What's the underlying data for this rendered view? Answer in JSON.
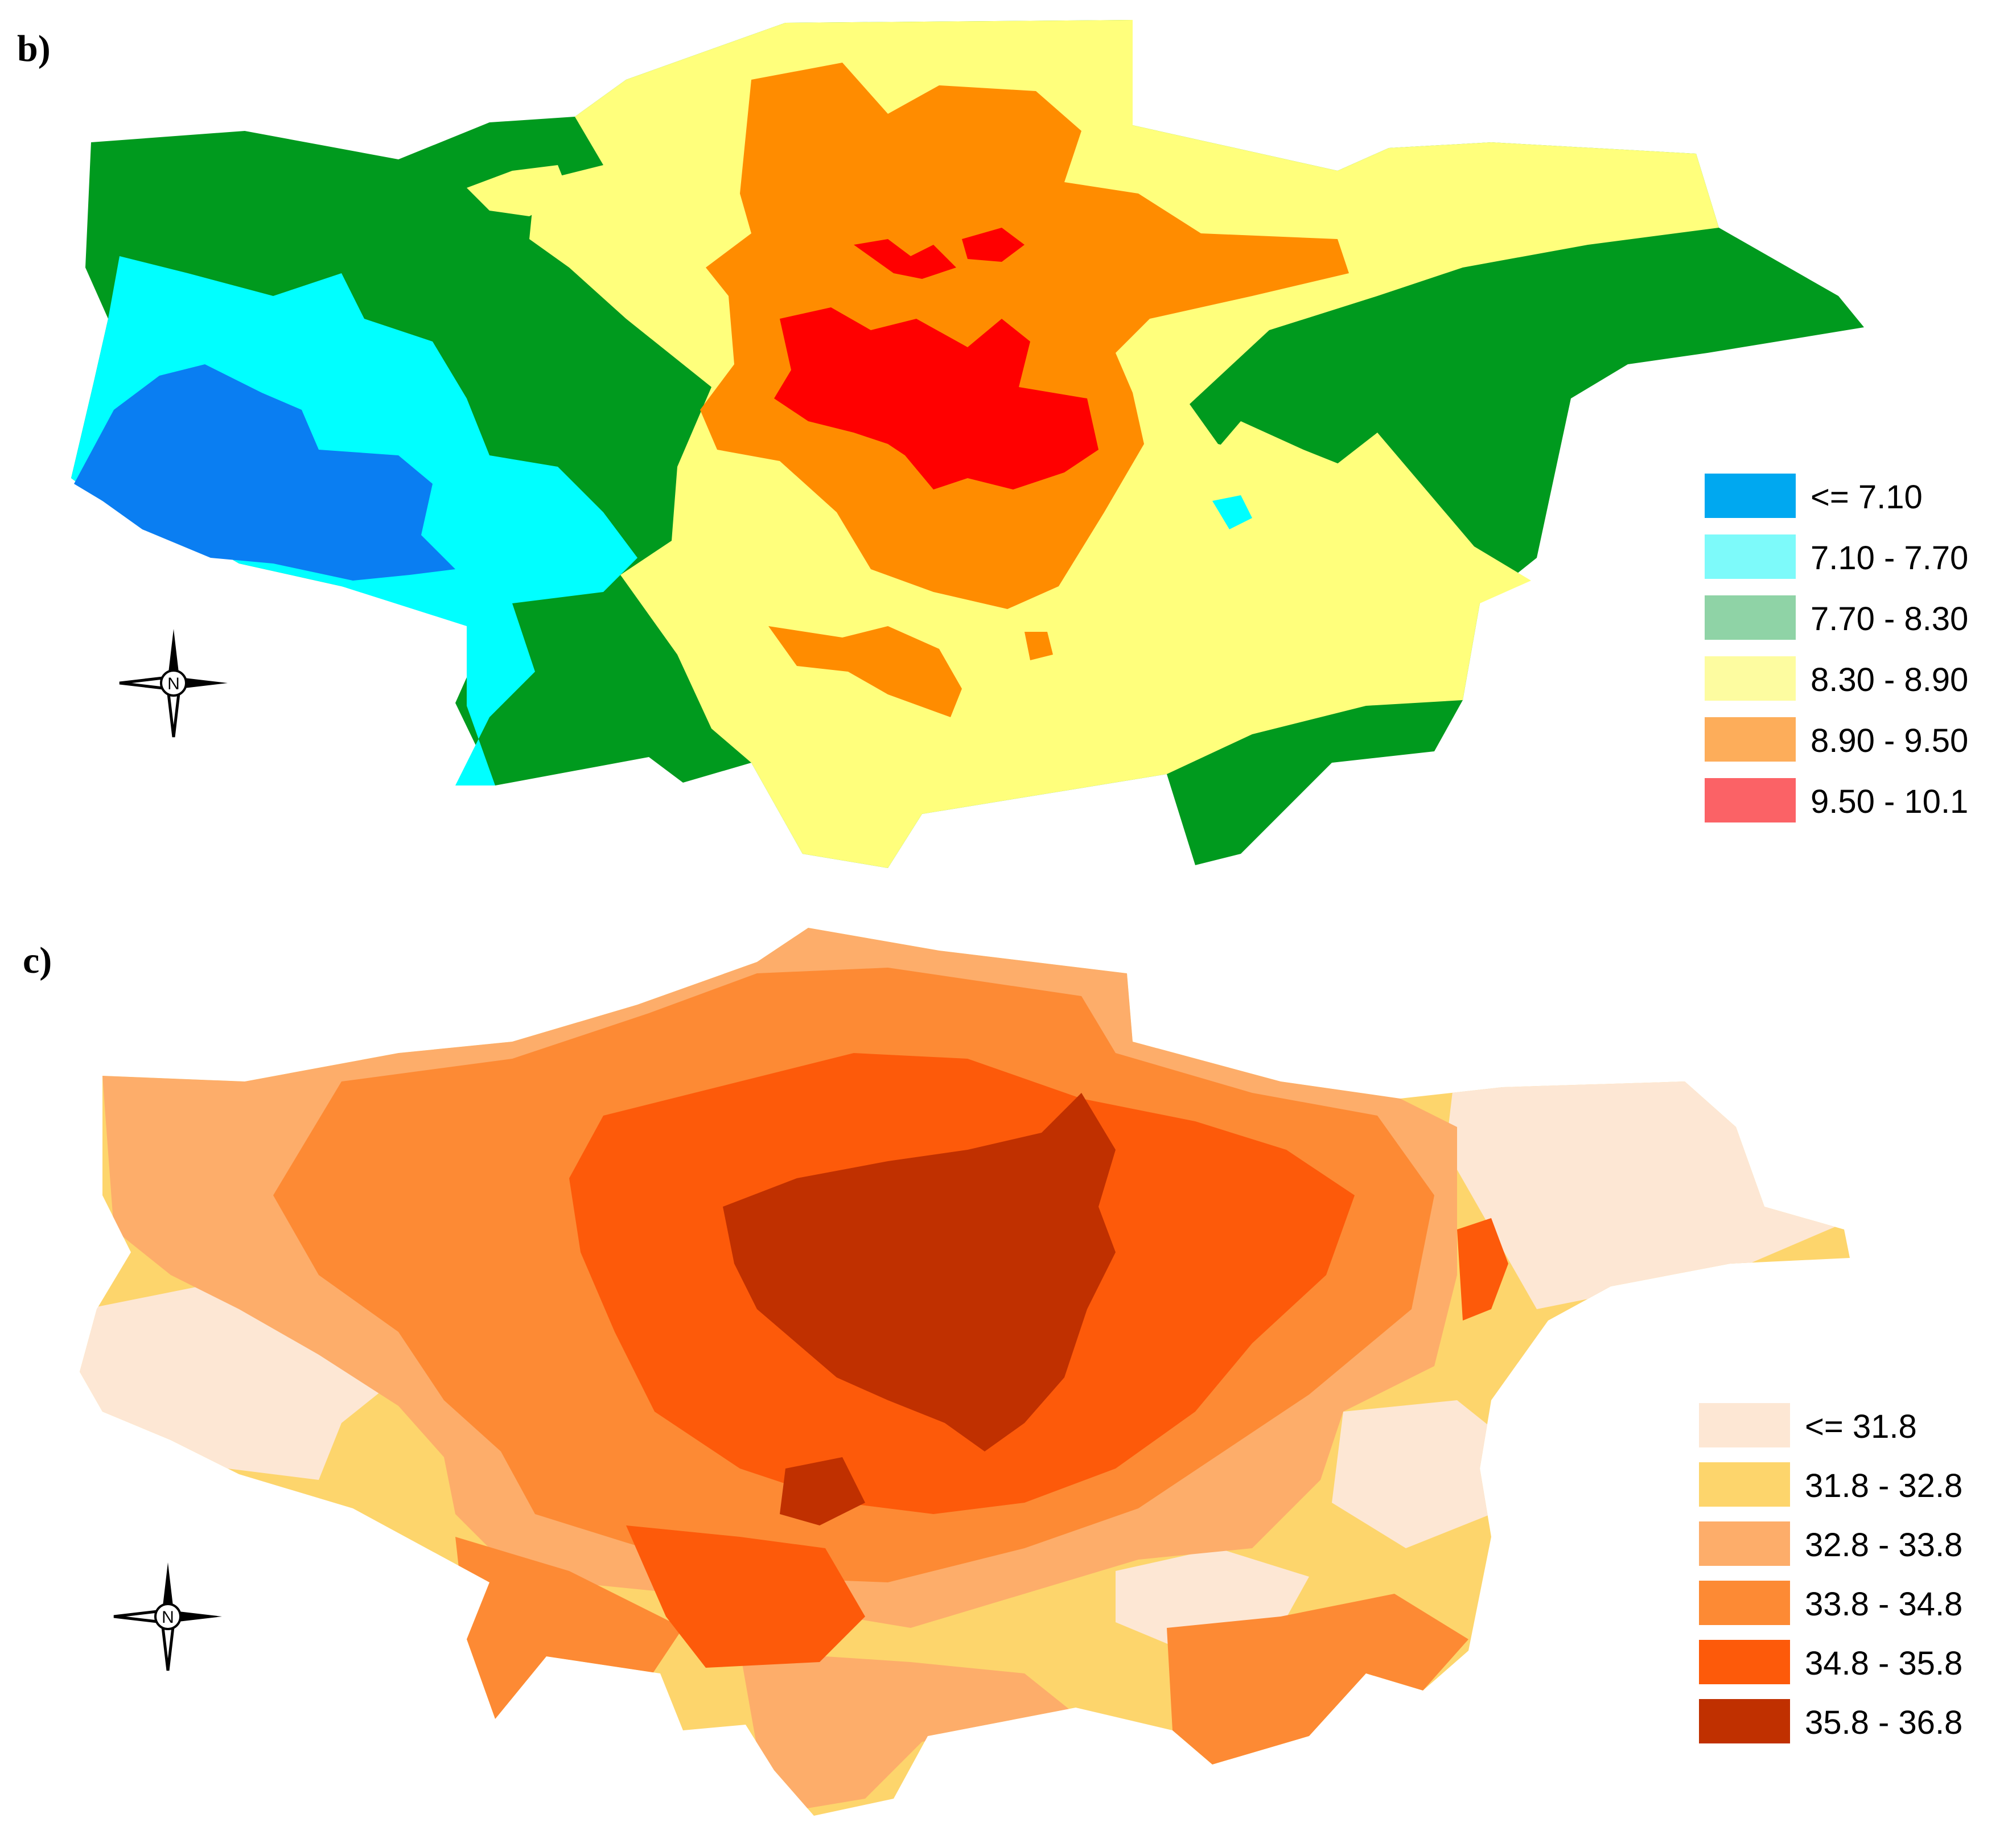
{
  "panels": [
    {
      "id": "b",
      "label": "b)",
      "legend": [
        {
          "label": "<= 7.10",
          "color": "#00a8f0"
        },
        {
          "label": "7.10 - 7.70",
          "color": "#7dfafa"
        },
        {
          "label": "7.70 - 8.30",
          "color": "#8fd3a6"
        },
        {
          "label": "8.30 - 8.90",
          "color": "#fdfca0"
        },
        {
          "label": "8.90 - 9.50",
          "color": "#fdad5a"
        },
        {
          "label": "9.50 - 10.1",
          "color": "#fb6266"
        }
      ],
      "map_colors": {
        "class1": "#0a7ef2",
        "class2": "#00ffff",
        "class3": "#009a1e",
        "class4": "#ffff7c",
        "class5": "#ff8c00",
        "class6": "#ff0000"
      },
      "compass_icon": "north-arrow-icon",
      "compass_letter": "N"
    },
    {
      "id": "c",
      "label": "c)",
      "legend": [
        {
          "label": "<= 31.8",
          "color": "#fde7d4"
        },
        {
          "label": "31.8 - 32.8",
          "color": "#fdd56c"
        },
        {
          "label": "32.8 - 33.8",
          "color": "#fdad6a"
        },
        {
          "label": "33.8 - 34.8",
          "color": "#fd8a34"
        },
        {
          "label": "34.8 - 35.8",
          "color": "#fd5a0a"
        },
        {
          "label": "35.8 - 36.8",
          "color": "#c03000"
        }
      ],
      "compass_icon": "north-arrow-icon",
      "compass_letter": "N"
    }
  ]
}
